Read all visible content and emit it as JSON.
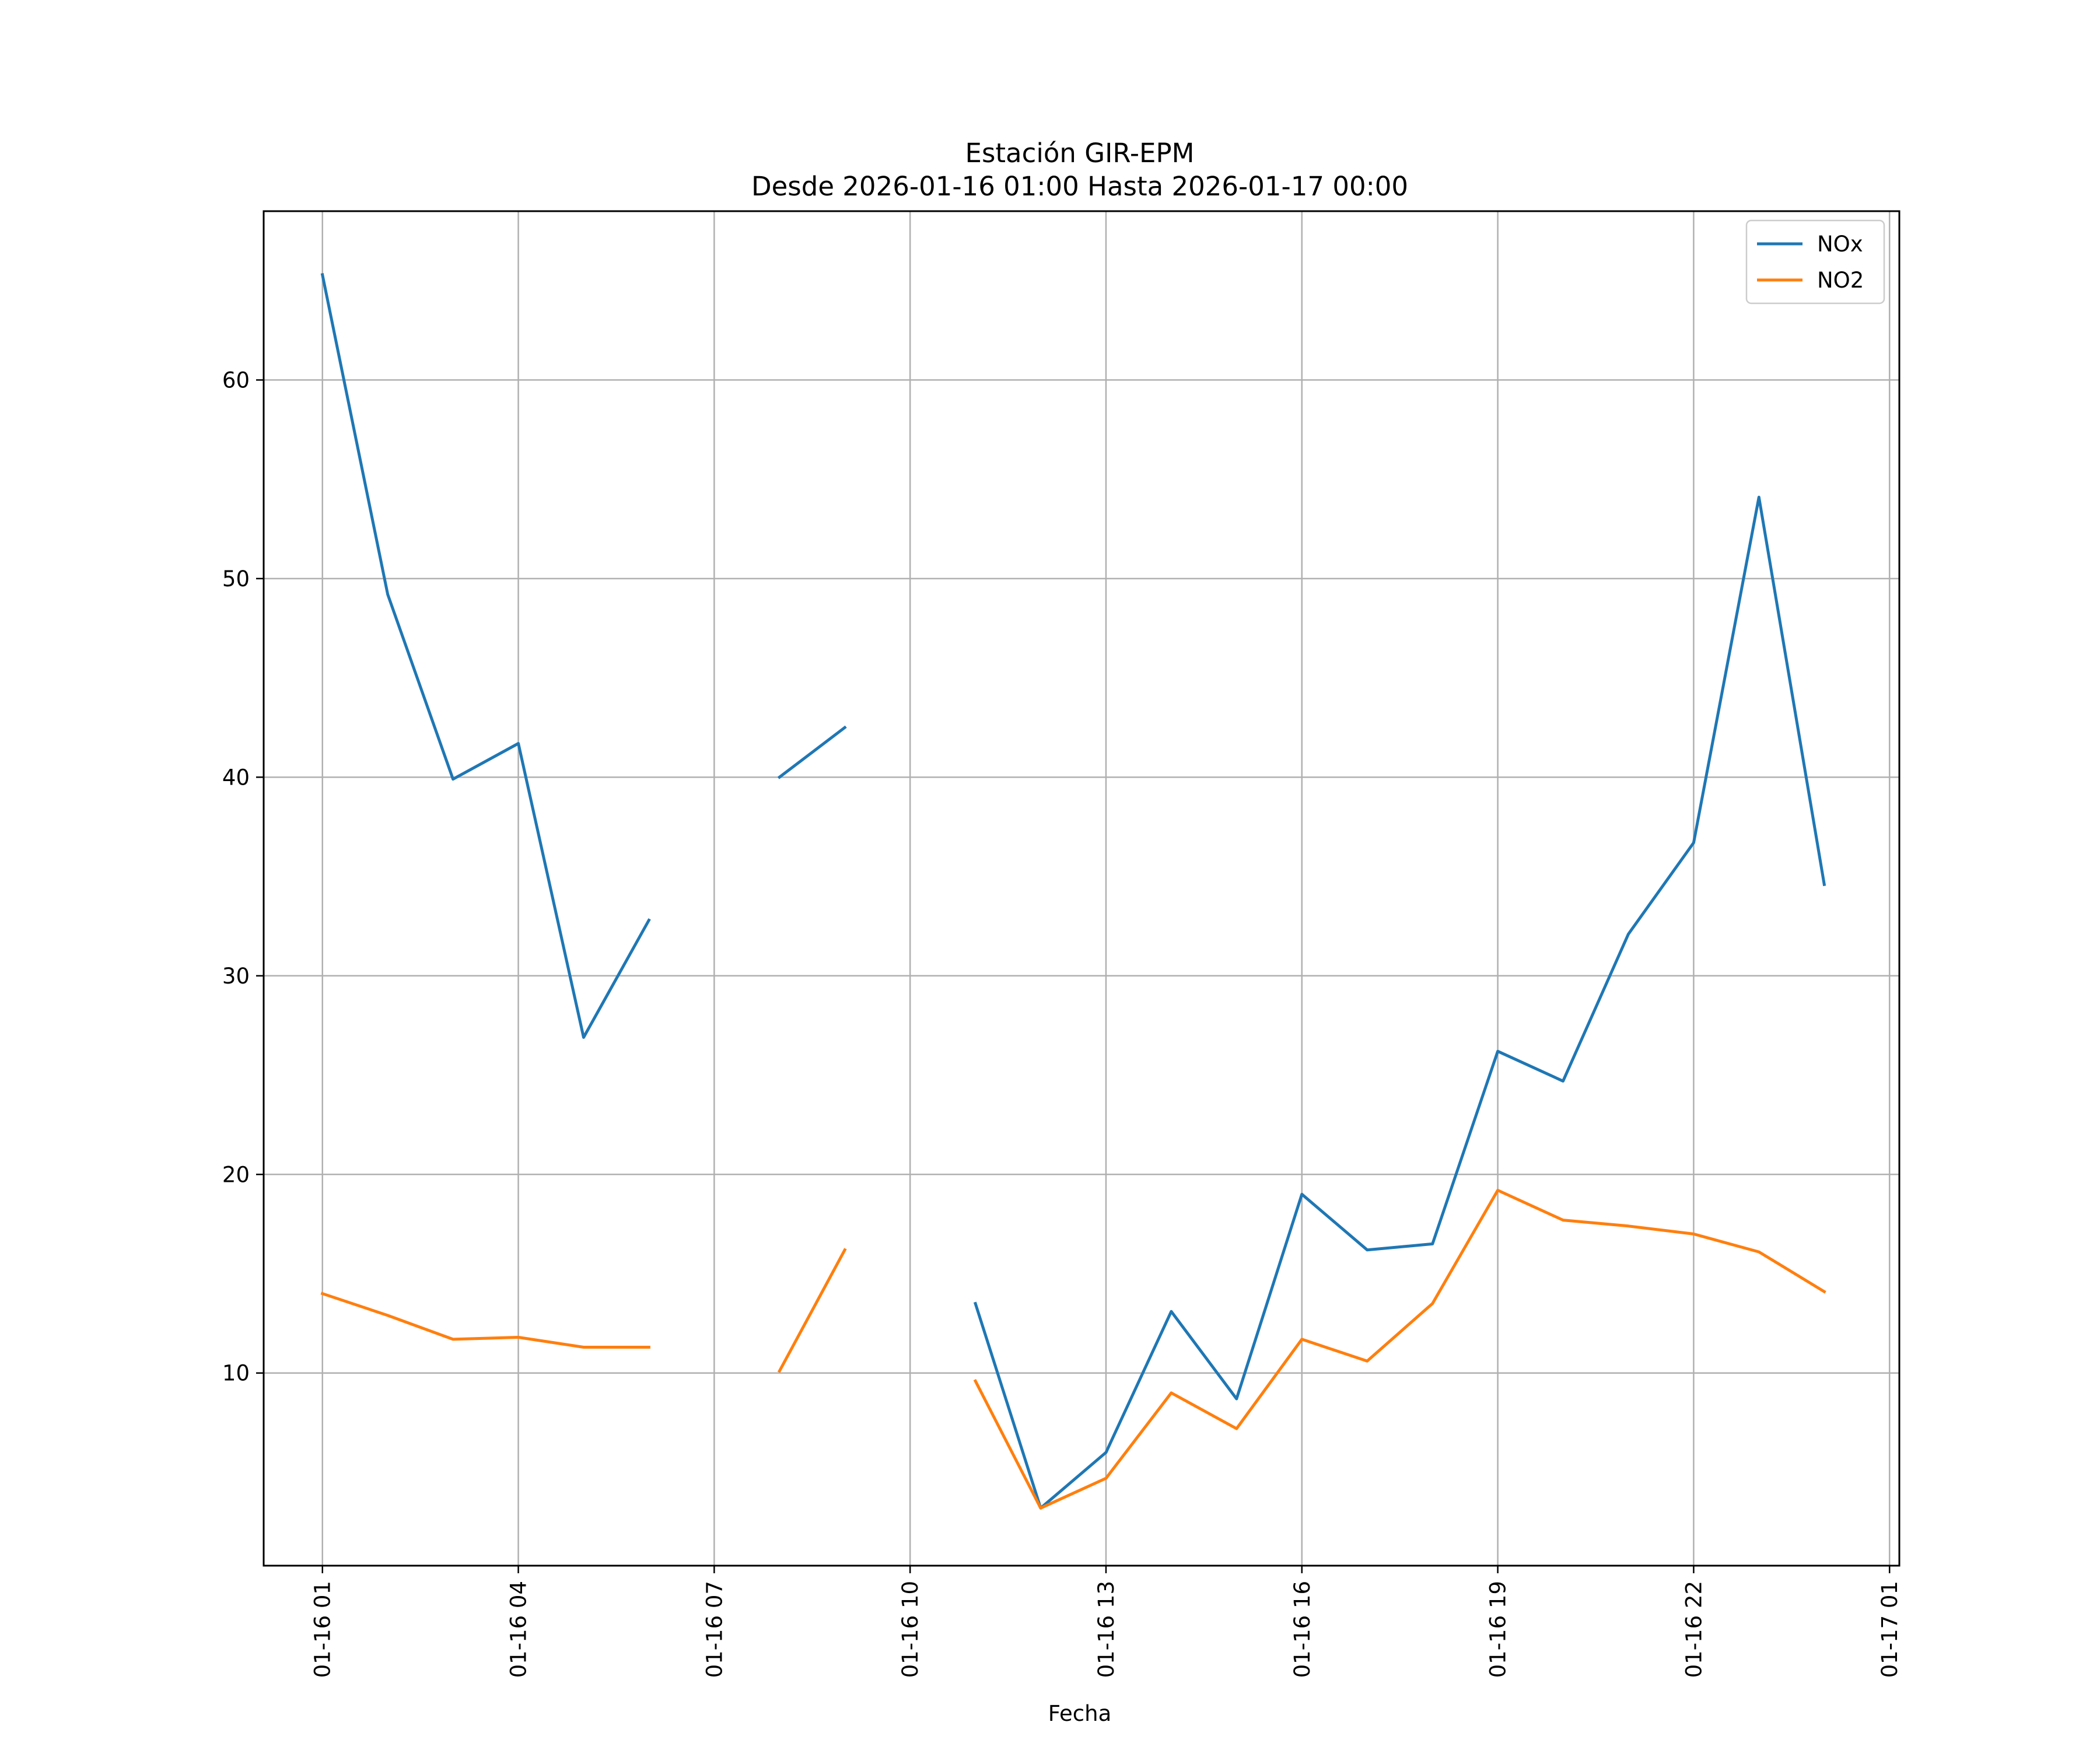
{
  "chart_data": {
    "type": "line",
    "title": "Estación GIR-EPM",
    "subtitle": "Desde 2026-01-16 01:00 Hasta 2026-01-17 00:00",
    "xlabel": "Fecha",
    "ylabel": "",
    "x": [
      "01-16 01",
      "01-16 02",
      "01-16 03",
      "01-16 04",
      "01-16 05",
      "01-16 06",
      "01-16 07",
      "01-16 08",
      "01-16 09",
      "01-16 10",
      "01-16 11",
      "01-16 12",
      "01-16 13",
      "01-16 14",
      "01-16 15",
      "01-16 16",
      "01-16 17",
      "01-16 18",
      "01-16 19",
      "01-16 20",
      "01-16 21",
      "01-16 22",
      "01-16 23",
      "01-17 00"
    ],
    "xlim_hours": [
      -0.9,
      24.15
    ],
    "ylim": [
      0.3,
      68.5
    ],
    "x_ticks": [
      {
        "label": "01-16 01",
        "hour": 0
      },
      {
        "label": "01-16 04",
        "hour": 3
      },
      {
        "label": "01-16 07",
        "hour": 6
      },
      {
        "label": "01-16 10",
        "hour": 9
      },
      {
        "label": "01-16 13",
        "hour": 12
      },
      {
        "label": "01-16 16",
        "hour": 15
      },
      {
        "label": "01-16 19",
        "hour": 18
      },
      {
        "label": "01-16 22",
        "hour": 21
      },
      {
        "label": "01-17 01",
        "hour": 24
      }
    ],
    "y_ticks": [
      10,
      20,
      30,
      40,
      50,
      60
    ],
    "grid": true,
    "legend_position": "top-right",
    "series": [
      {
        "name": "NOx",
        "color": "#1f77b4",
        "values": [
          65.3,
          49.2,
          39.9,
          41.7,
          26.9,
          32.8,
          null,
          40.0,
          42.5,
          null,
          13.5,
          3.2,
          6.0,
          13.1,
          8.7,
          19.0,
          16.2,
          16.5,
          26.2,
          24.7,
          32.1,
          36.7,
          54.1,
          34.6
        ]
      },
      {
        "name": "NO2",
        "color": "#ff7f0e",
        "values": [
          14.0,
          12.9,
          11.7,
          11.8,
          11.3,
          11.3,
          null,
          10.1,
          16.2,
          null,
          9.6,
          3.2,
          4.7,
          9.0,
          7.2,
          11.7,
          10.6,
          13.5,
          19.2,
          17.7,
          17.4,
          17.0,
          16.1,
          14.1
        ]
      }
    ]
  }
}
